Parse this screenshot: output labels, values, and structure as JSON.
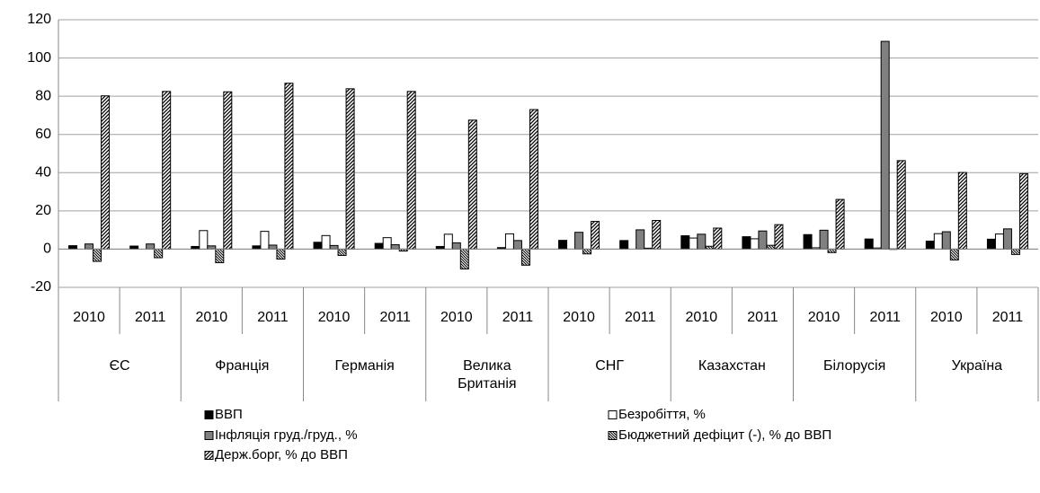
{
  "chart_data": {
    "type": "bar",
    "categories": [
      "2010",
      "2011",
      "2010",
      "2011",
      "2010",
      "2011",
      "2010",
      "2011",
      "2010",
      "2011",
      "2010",
      "2011",
      "2010",
      "2011",
      "2010",
      "2011"
    ],
    "groups": [
      "ЄС",
      "Франція",
      "Германія",
      "Велика Британія",
      "СНГ",
      "Казахстан",
      "Білорусія",
      "Україна"
    ],
    "series": [
      {
        "name": "ВВП",
        "color": "#000000",
        "pattern": "solid",
        "values": [
          1.8,
          1.6,
          1.4,
          1.7,
          3.6,
          3.0,
          1.4,
          0.8,
          4.6,
          4.5,
          7.0,
          6.5,
          7.6,
          5.3,
          4.2,
          5.2
        ]
      },
      {
        "name": "Безробіття, %",
        "color": "#ffffff",
        "pattern": "solid",
        "values": [
          null,
          null,
          9.7,
          9.3,
          7.1,
          6.0,
          7.8,
          8.0,
          null,
          null,
          5.8,
          5.4,
          0.7,
          0.6,
          8.1,
          7.9
        ]
      },
      {
        "name": "Інфляція груд./груд., %",
        "color": "#808080",
        "pattern": "solid",
        "values": [
          2.7,
          2.7,
          1.7,
          2.1,
          1.9,
          2.3,
          3.3,
          4.5,
          8.8,
          10.1,
          7.8,
          9.5,
          9.9,
          108.7,
          9.1,
          10.6
        ]
      },
      {
        "name": "Бюджетний дефіцит (-), % до ВВП",
        "color": "#ffffff",
        "pattern": "dense-backslash",
        "values": [
          -6.4,
          -4.5,
          -7.1,
          -5.2,
          -3.3,
          -1.0,
          -10.4,
          -8.4,
          -2.5,
          0.5,
          1.5,
          2.0,
          -1.8,
          0.1,
          -5.7,
          -2.8
        ]
      },
      {
        "name": "Держ.борг, % до ВВП",
        "color": "#ffffff",
        "pattern": "slash",
        "values": [
          80.2,
          82.5,
          82.3,
          86.8,
          83.9,
          82.5,
          67.5,
          73.0,
          14.5,
          15.0,
          11.0,
          12.8,
          26.0,
          46.3,
          40.1,
          39.5
        ]
      }
    ],
    "ylim": [
      -20,
      120
    ],
    "yticks": [
      -20,
      0,
      20,
      40,
      60,
      80,
      100,
      120
    ],
    "grid": true,
    "legend": "bottom"
  }
}
